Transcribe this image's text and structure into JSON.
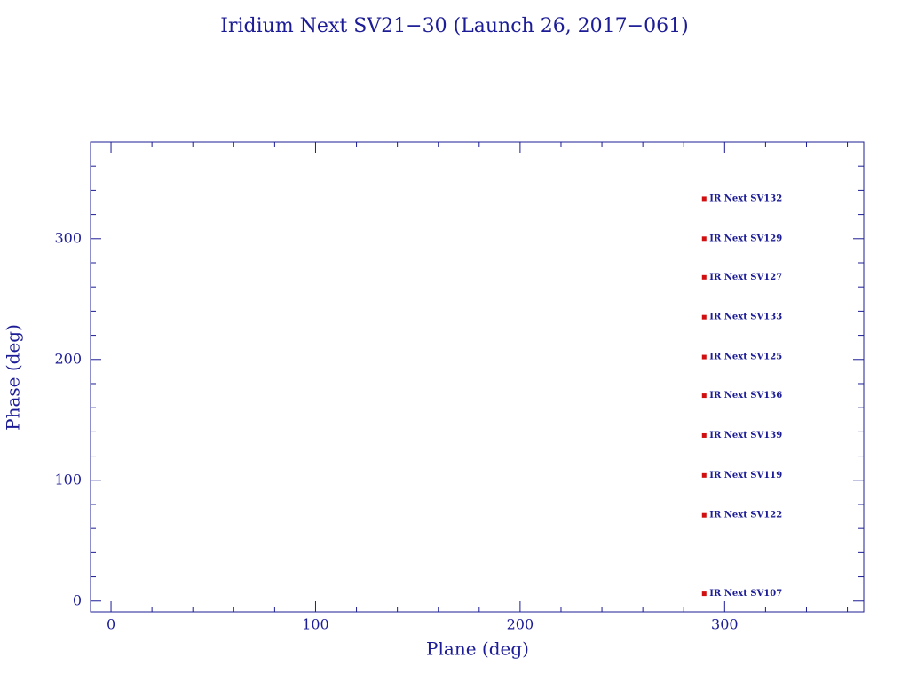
{
  "chart_data": {
    "type": "scatter",
    "title": "Iridium Next SV21−30 (Launch 26, 2017−061)",
    "x_label": "Plane (deg)",
    "y_label": "Phase (deg)",
    "x": [
      290,
      290,
      290,
      290,
      290,
      290,
      290,
      290,
      290,
      290
    ],
    "values": [
      333,
      300,
      268,
      235,
      202,
      170,
      137,
      104,
      71,
      6
    ],
    "point_labels": [
      "IR Next SV132",
      "IR Next SV129",
      "IR Next SV127",
      "IR Next SV133",
      "IR Next SV125",
      "IR Next SV136",
      "IR Next SV139",
      "IR Next SV119",
      "IR Next SV122",
      "IR Next SV107"
    ],
    "color": "#d01010",
    "axis_color": "#1c1c96",
    "xlim": [
      -10,
      368
    ],
    "ylim": [
      -9,
      380
    ],
    "xticks": [
      0,
      100,
      200,
      300
    ],
    "yticks": [
      0,
      100,
      200,
      300
    ],
    "xminorticks": [
      20,
      40,
      60,
      80,
      120,
      140,
      160,
      180,
      220,
      240,
      260,
      280,
      320,
      340,
      360
    ],
    "yminorticks": [
      20,
      40,
      60,
      80,
      120,
      140,
      160,
      180,
      220,
      240,
      260,
      280,
      320,
      340,
      360
    ]
  }
}
